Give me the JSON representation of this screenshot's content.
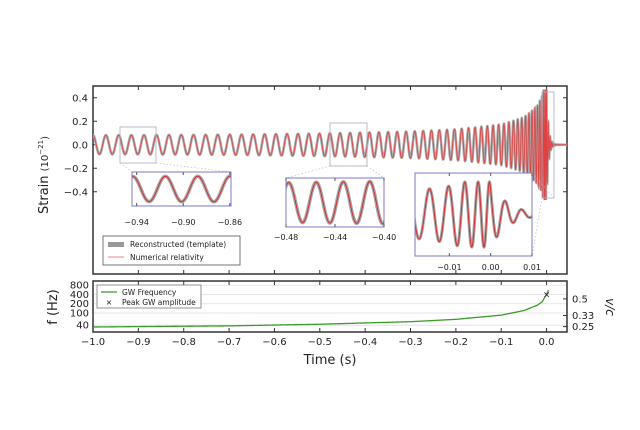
{
  "chart_data": [
    {
      "type": "line",
      "panel": "strain",
      "ylabel": "Strain",
      "ylabel_unit": "(10",
      "ylabel_exp": "−21",
      "ylabel_close": ")",
      "xlim": [
        -1.0,
        0.045
      ],
      "ylim": [
        -1.1,
        0.5
      ],
      "yticks": [
        0.4,
        0.2,
        0.0,
        -0.2,
        -0.4
      ],
      "ytick_labels": [
        "0.4",
        "0.2",
        "0.0",
        "−0.2",
        "−0.4"
      ],
      "series": [
        {
          "name": "Reconstructed (template)",
          "color": "#999999"
        },
        {
          "name": "Numerical relativity",
          "color": "#e04040"
        }
      ],
      "waveform_model": {
        "base_amplitude": 0.08,
        "base_frequency": 35,
        "peak_amplitude": 0.47,
        "ringdown_tau": 0.004
      },
      "legend": {
        "location": "lower-left",
        "entries": [
          "Reconstructed (template)",
          "Numerical relativity"
        ]
      },
      "insets": [
        {
          "xlim": [
            -0.944,
            -0.859
          ],
          "ylim": [
            -0.11,
            0.11
          ],
          "ticks": [
            -0.94,
            -0.9,
            -0.86
          ],
          "tick_labels": [
            "−0.94",
            "−0.90",
            "−0.86"
          ]
        },
        {
          "xlim": [
            -0.48,
            -0.4
          ],
          "ylim": [
            -0.12,
            0.12
          ],
          "ticks": [
            -0.48,
            -0.44,
            -0.4
          ],
          "tick_labels": [
            "−0.48",
            "−0.44",
            "−0.40"
          ]
        },
        {
          "xlim": [
            -0.0183,
            0.01
          ],
          "ylim": [
            -0.6,
            0.6
          ],
          "ticks": [
            -0.01,
            0.0,
            0.01
          ],
          "tick_labels": [
            "−0.01",
            "0.00",
            "0.01"
          ]
        }
      ]
    },
    {
      "type": "line",
      "panel": "frequency",
      "xlabel": "Time (s)",
      "ylabel": "f (Hz)",
      "ylabel_right": "v/c",
      "xlim": [
        -1.0,
        0.045
      ],
      "ylim": [
        24,
        1100
      ],
      "yscale": "log",
      "xticks": [
        -1.0,
        -0.9,
        -0.8,
        -0.7,
        -0.6,
        -0.5,
        -0.4,
        -0.3,
        -0.2,
        -0.1,
        0.0
      ],
      "xtick_labels": [
        "−1.0",
        "−0.9",
        "−0.8",
        "−0.7",
        "−0.6",
        "−0.5",
        "−0.4",
        "−0.3",
        "−0.2",
        "−0.1",
        "0.0"
      ],
      "yticks": [
        800,
        400,
        200,
        100,
        40
      ],
      "ytick_labels": [
        "800",
        "400",
        "200",
        "100",
        "40"
      ],
      "right_ticks": [
        0.5,
        0.33,
        0.25
      ],
      "right_tick_labels": [
        "0.5",
        "0.33",
        "0.25"
      ],
      "series": [
        {
          "name": "GW Frequency",
          "color": "#3a9a2a",
          "t": [
            -1.0,
            -0.7,
            -0.5,
            -0.3,
            -0.2,
            -0.1,
            -0.05,
            -0.02,
            -0.01,
            0.0,
            0.005
          ],
          "f": [
            35,
            38,
            43,
            52,
            62,
            85,
            120,
            180,
            230,
            400,
            600
          ]
        },
        {
          "name": "Peak GW amplitude",
          "marker": "x",
          "t": [
            0.0
          ],
          "f": [
            400
          ]
        }
      ],
      "legend": {
        "location": "upper-left",
        "entries": [
          "GW Frequency",
          "Peak GW amplitude"
        ]
      }
    }
  ]
}
